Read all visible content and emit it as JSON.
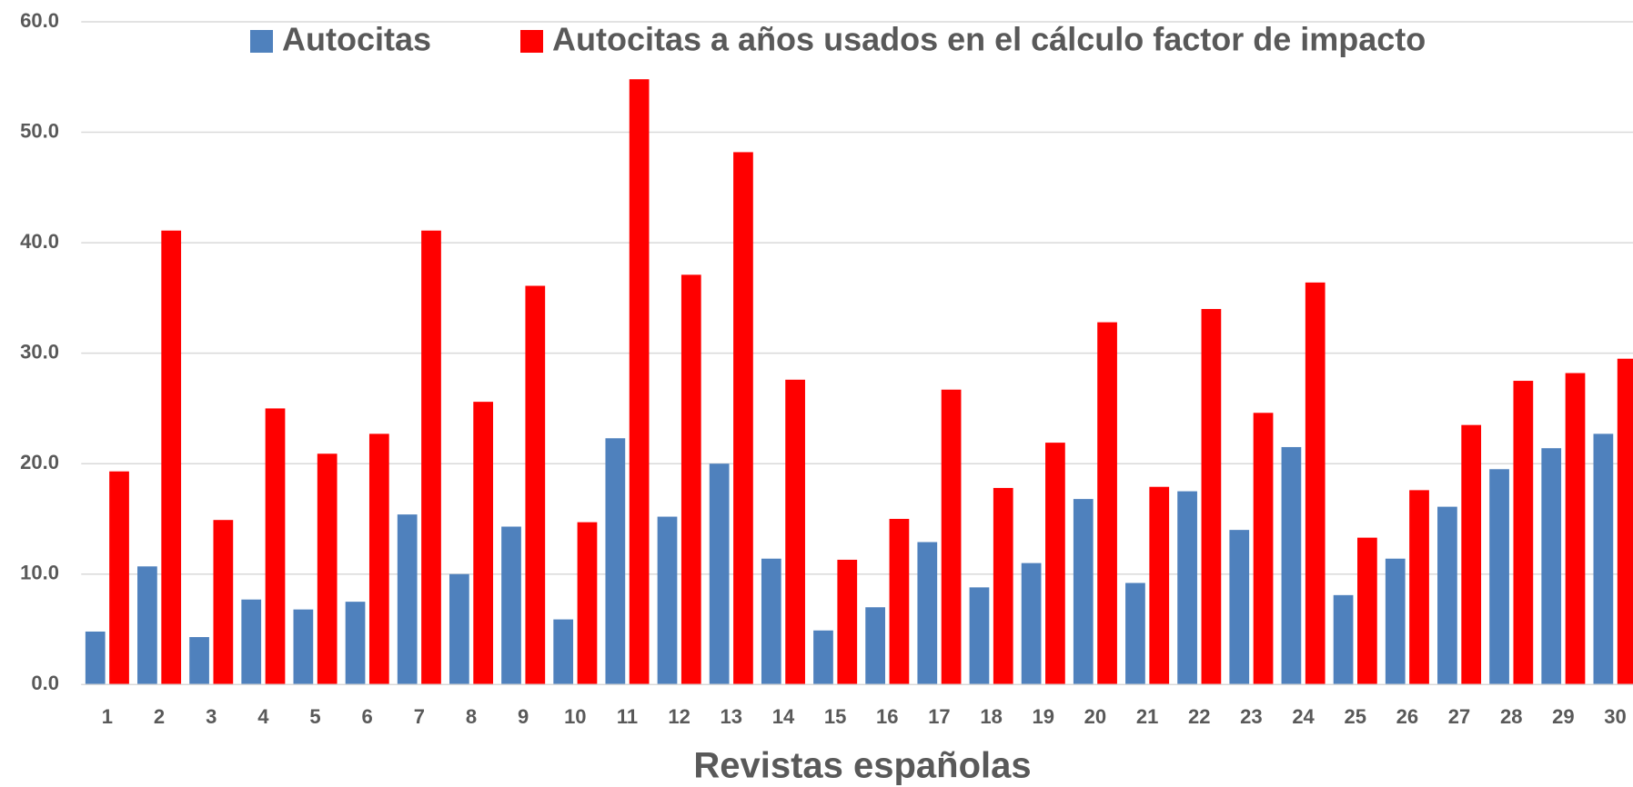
{
  "chart_data": {
    "type": "bar",
    "x_label": "Revistas españolas",
    "categories": [
      "1",
      "2",
      "3",
      "4",
      "5",
      "6",
      "7",
      "8",
      "9",
      "10",
      "11",
      "12",
      "13",
      "14",
      "15",
      "16",
      "17",
      "18",
      "19",
      "20",
      "21",
      "22",
      "23",
      "24",
      "25",
      "26",
      "27",
      "28",
      "29",
      "30"
    ],
    "series": [
      {
        "name": "Autocitas",
        "color": "#4f81bd",
        "values": [
          4.8,
          10.7,
          4.3,
          7.7,
          6.8,
          7.5,
          15.4,
          10.0,
          14.3,
          5.9,
          22.3,
          15.2,
          20.0,
          11.4,
          4.9,
          7.0,
          12.9,
          8.8,
          11.0,
          16.8,
          9.2,
          17.5,
          14.0,
          21.5,
          8.1,
          11.4,
          16.1,
          19.5,
          21.4,
          22.7
        ]
      },
      {
        "name": "Autocitas a años usados en el cálculo factor de impacto",
        "color": "#ff0000",
        "values": [
          19.3,
          41.1,
          14.9,
          25.0,
          20.9,
          22.7,
          41.1,
          25.6,
          36.1,
          14.7,
          54.8,
          37.1,
          48.2,
          27.6,
          11.3,
          15.0,
          26.7,
          17.8,
          21.9,
          32.8,
          17.9,
          34.0,
          24.6,
          36.4,
          13.3,
          17.6,
          23.5,
          27.5,
          28.2,
          29.5
        ]
      }
    ],
    "ylim": [
      0,
      60
    ],
    "yticks": [
      {
        "value": 0,
        "label": "0.0"
      },
      {
        "value": 10,
        "label": "10.0"
      },
      {
        "value": 20,
        "label": "20.0"
      },
      {
        "value": 30,
        "label": "30.0"
      },
      {
        "value": 40,
        "label": "40.0"
      },
      {
        "value": 50,
        "label": "50.0"
      },
      {
        "value": 60,
        "label": "60.0"
      }
    ],
    "grid": true,
    "legend": "top"
  }
}
